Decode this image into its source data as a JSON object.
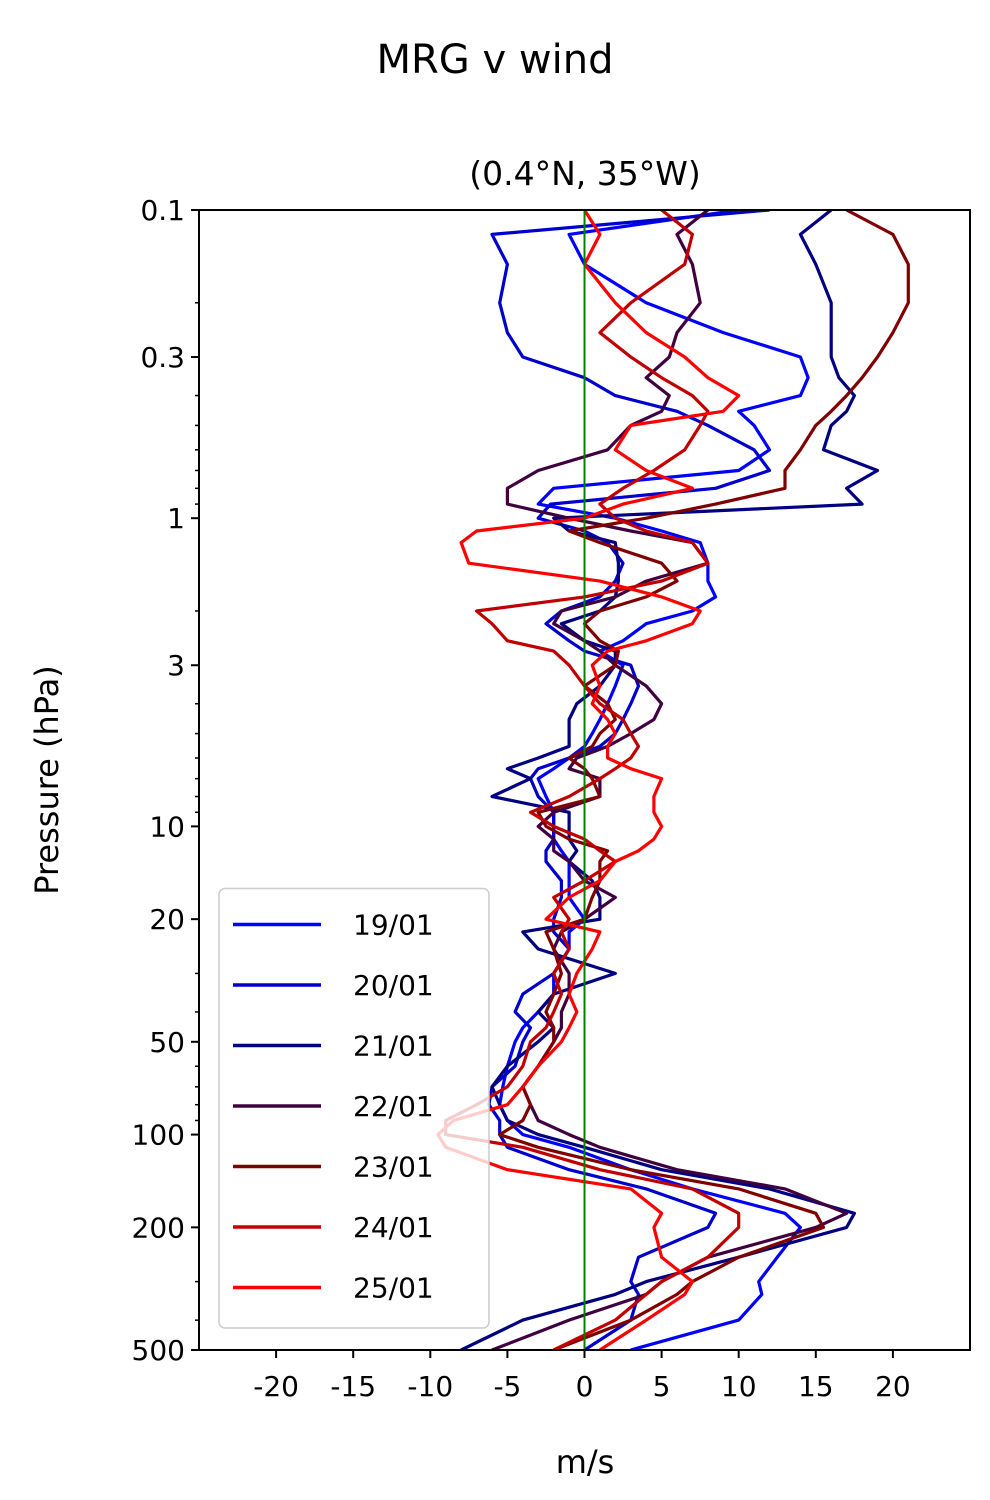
{
  "chart_data": {
    "type": "line",
    "suptitle": "MRG v wind",
    "title": "(0.4°N, 35°W)",
    "xlabel": "m/s",
    "ylabel": "Pressure (hPa)",
    "xlim": [
      -25,
      25
    ],
    "ylim": [
      500,
      0.1
    ],
    "yscale": "log",
    "x_ticks": [
      -20,
      -15,
      -10,
      -5,
      0,
      5,
      10,
      15,
      20
    ],
    "x_tick_labels": [
      "-20",
      "-15",
      "-10",
      "-5",
      "0",
      "5",
      "10",
      "15",
      "20"
    ],
    "y_ticks": [
      0.1,
      0.3,
      1,
      3,
      10,
      20,
      50,
      100,
      200,
      500
    ],
    "y_tick_labels": [
      "0.1",
      "0.3",
      "1",
      "3",
      "10",
      "20",
      "50",
      "100",
      "200",
      "500"
    ],
    "grid": false,
    "legend_position": "lower-left",
    "zero_line": {
      "x": 0,
      "color": "#008000"
    },
    "series": [
      {
        "name": "19/01",
        "color": "#0000ff",
        "pressure": [
          500,
          400,
          330,
          300,
          250,
          200,
          180,
          150,
          130,
          110,
          100,
          90,
          80,
          70,
          60,
          50,
          45,
          40,
          35,
          30,
          25,
          22,
          20,
          17,
          15,
          13,
          12,
          11,
          10,
          9,
          8,
          7,
          6.5,
          6,
          5.5,
          5,
          4.5,
          4,
          3.5,
          3,
          2.7,
          2.5,
          2.2,
          2,
          1.8,
          1.6,
          1.4,
          1.2,
          1.1,
          1,
          0.9,
          0.8,
          0.7,
          0.6,
          0.5,
          0.45,
          0.4,
          0.35,
          0.3,
          0.25,
          0.2,
          0.15,
          0.12,
          0.1
        ],
        "values": [
          3,
          10,
          11.5,
          11.3,
          12.5,
          14,
          13,
          7,
          3,
          -1,
          -4,
          -5,
          -5.5,
          -5.3,
          -5,
          -4.5,
          -4,
          -3,
          -2,
          -2,
          -1,
          -1,
          0,
          -1,
          -1,
          -1,
          -1.5,
          -2,
          -2,
          -2,
          -2.5,
          -3,
          -2,
          -1,
          0,
          0.5,
          1,
          1.5,
          2,
          2.5,
          1,
          2.5,
          4,
          7,
          8.5,
          8,
          8,
          7.5,
          5,
          2,
          -3,
          -2,
          10,
          12,
          11,
          10,
          14,
          14.5,
          14,
          9,
          4,
          0,
          -1,
          10
        ]
      },
      {
        "name": "20/01",
        "color": "#0000cd",
        "pressure": [
          500,
          400,
          330,
          300,
          250,
          200,
          180,
          150,
          130,
          110,
          100,
          90,
          80,
          70,
          60,
          50,
          45,
          40,
          35,
          30,
          25,
          22,
          20,
          17,
          15,
          13,
          12,
          11,
          10,
          9,
          8,
          7,
          6.5,
          6,
          5.5,
          5,
          4.5,
          4,
          3.5,
          3,
          2.7,
          2.5,
          2.2,
          2,
          1.8,
          1.6,
          1.4,
          1.2,
          1.1,
          1,
          0.9,
          0.8,
          0.7,
          0.6,
          0.5,
          0.45,
          0.4,
          0.35,
          0.3,
          0.25,
          0.2,
          0.15,
          0.12,
          0.1
        ],
        "values": [
          0,
          3,
          3.5,
          3,
          3.5,
          8,
          8.5,
          4,
          -1,
          -5,
          -5.5,
          -5.5,
          -6.2,
          -6,
          -4.5,
          -4,
          -3.5,
          -4.5,
          -4,
          -2,
          -1,
          -2,
          -2,
          -1.5,
          -1.5,
          -2.5,
          -2.5,
          -2,
          -2,
          -2,
          -3,
          -3.5,
          -3,
          -1,
          1,
          2,
          2.5,
          3,
          3.5,
          3,
          0,
          -1,
          -2.5,
          -1.5,
          1,
          2,
          2.5,
          1.5,
          0,
          -3,
          -2.2,
          8.5,
          12,
          11,
          8,
          6,
          2,
          0,
          -4,
          -5,
          -5.5,
          -5,
          -6,
          12
        ]
      },
      {
        "name": "21/01",
        "color": "#000080",
        "pressure": [
          500,
          400,
          330,
          300,
          250,
          200,
          180,
          150,
          130,
          110,
          100,
          90,
          80,
          70,
          60,
          50,
          45,
          40,
          35,
          30,
          25,
          22,
          20,
          17,
          15,
          13,
          12,
          11,
          10,
          9,
          8,
          7,
          6.5,
          6,
          5.5,
          5,
          4.5,
          4,
          3.5,
          3,
          2.7,
          2.5,
          2.2,
          2,
          1.8,
          1.6,
          1.4,
          1.2,
          1.1,
          1,
          0.9,
          0.8,
          0.7,
          0.6,
          0.5,
          0.45,
          0.4,
          0.35,
          0.3,
          0.25,
          0.2,
          0.15,
          0.12,
          0.1
        ],
        "values": [
          -8,
          -4,
          2,
          4,
          10,
          17,
          17.5,
          12,
          5,
          0,
          -3,
          -5,
          -5.5,
          -6,
          -5,
          -3,
          -2,
          -3,
          -2,
          2,
          -3,
          -4,
          1,
          1,
          0.5,
          -1,
          -0.5,
          -1,
          -1,
          -1,
          -6,
          -3.5,
          -5,
          -3,
          -1,
          -1,
          -1,
          -0.5,
          1,
          2,
          2,
          0,
          -1.5,
          1,
          2,
          2.2,
          2.2,
          2,
          -1,
          -2,
          18,
          17,
          19,
          15.5,
          16,
          17,
          17.5,
          16.5,
          16,
          16,
          16,
          15,
          14,
          16
        ]
      },
      {
        "name": "22/01",
        "color": "#400040",
        "pressure": [
          500,
          400,
          330,
          300,
          250,
          200,
          180,
          150,
          130,
          110,
          100,
          90,
          80,
          70,
          60,
          50,
          45,
          40,
          35,
          30,
          25,
          22,
          20,
          17,
          15,
          13,
          12,
          11,
          10,
          9,
          8,
          7,
          6.5,
          6,
          5.5,
          5,
          4.5,
          4,
          3.5,
          3,
          2.7,
          2.5,
          2.2,
          2,
          1.8,
          1.6,
          1.4,
          1.2,
          1.1,
          1,
          0.9,
          0.8,
          0.7,
          0.6,
          0.5,
          0.45,
          0.4,
          0.35,
          0.3,
          0.25,
          0.2,
          0.15,
          0.12,
          0.1
        ],
        "values": [
          -6,
          -1,
          4,
          5,
          8,
          15,
          17,
          13,
          6,
          1,
          -1,
          -3,
          -3.5,
          -4,
          -3,
          -2,
          -1.5,
          -1.5,
          -1,
          -1,
          -2,
          -1.5,
          0,
          2,
          0,
          -1,
          -2,
          -2,
          -3,
          -2,
          1,
          1,
          -1,
          -0.5,
          1.5,
          3,
          4.5,
          5,
          4,
          2,
          1,
          0,
          -2,
          -1.5,
          2,
          4,
          8,
          7,
          3,
          -1,
          -5,
          -5,
          -3,
          1.5,
          3,
          5,
          5.5,
          4,
          5.5,
          6,
          7.5,
          7,
          6,
          8
        ]
      },
      {
        "name": "23/01",
        "color": "#800000",
        "pressure": [
          500,
          400,
          330,
          300,
          250,
          200,
          180,
          150,
          130,
          110,
          100,
          90,
          80,
          70,
          60,
          50,
          45,
          40,
          35,
          30,
          25,
          22,
          20,
          17,
          15,
          13,
          12,
          11,
          10,
          9,
          8,
          7,
          6.5,
          6,
          5.5,
          5,
          4.5,
          4,
          3.5,
          3,
          2.7,
          2.5,
          2.2,
          2,
          1.8,
          1.6,
          1.4,
          1.2,
          1.1,
          1,
          0.9,
          0.8,
          0.7,
          0.6,
          0.5,
          0.45,
          0.4,
          0.35,
          0.3,
          0.25,
          0.2,
          0.15,
          0.12,
          0.1
        ],
        "values": [
          -2,
          3,
          6,
          7,
          10,
          15.5,
          15,
          10,
          3,
          -3,
          -5.5,
          -4,
          -3.5,
          -4,
          -3,
          -2,
          -2,
          -2.5,
          -2,
          -1.5,
          -2,
          -2.5,
          0,
          0.5,
          1,
          1,
          1.5,
          -1,
          -2.5,
          -3,
          1,
          0.5,
          0,
          -1,
          0.5,
          1,
          2,
          1.5,
          0,
          2,
          2.2,
          1,
          0,
          1,
          4,
          6,
          5,
          1,
          -1,
          4,
          8.5,
          13,
          13,
          14,
          15,
          16,
          17,
          18,
          19,
          20,
          21,
          21,
          20,
          17
        ]
      },
      {
        "name": "24/01",
        "color": "#c00000",
        "pressure": [
          500,
          400,
          330,
          300,
          250,
          200,
          180,
          150,
          130,
          110,
          100,
          90,
          80,
          70,
          60,
          50,
          45,
          40,
          35,
          30,
          25,
          22,
          20,
          17,
          15,
          13,
          12,
          11,
          10,
          9,
          8,
          7,
          6.5,
          6,
          5.5,
          5,
          4.5,
          4,
          3.5,
          3,
          2.7,
          2.5,
          2.2,
          2,
          1.8,
          1.6,
          1.4,
          1.2,
          1.1,
          1,
          0.9,
          0.8,
          0.7,
          0.6,
          0.5,
          0.45,
          0.4,
          0.35,
          0.3,
          0.25,
          0.2,
          0.15,
          0.12,
          0.1
        ],
        "values": [
          -2,
          2,
          4,
          5,
          8,
          10,
          10,
          7,
          1,
          -4,
          -9,
          -9,
          -7,
          -5,
          -4,
          -3.5,
          -2.5,
          -2,
          -1.5,
          -2,
          -1,
          -1.5,
          -1,
          -2,
          0,
          2,
          1,
          0,
          -2,
          -3.5,
          -1,
          1,
          2,
          3,
          3.5,
          3,
          2.5,
          1,
          0,
          -1,
          -2,
          -5,
          -6,
          -7,
          0,
          5,
          8,
          7,
          4,
          2,
          1,
          2.5,
          4.5,
          6.5,
          7.5,
          8,
          7,
          5,
          3,
          1,
          3,
          6.5,
          7,
          5
        ]
      },
      {
        "name": "25/01",
        "color": "#ff0000",
        "pressure": [
          500,
          400,
          330,
          300,
          250,
          200,
          180,
          150,
          130,
          110,
          100,
          90,
          80,
          70,
          60,
          50,
          45,
          40,
          35,
          30,
          25,
          22,
          20,
          17,
          15,
          13,
          12,
          11,
          10,
          9,
          8,
          7,
          6.5,
          6,
          5.5,
          5,
          4.5,
          4,
          3.5,
          3,
          2.7,
          2.5,
          2.2,
          2,
          1.8,
          1.6,
          1.4,
          1.2,
          1.1,
          1,
          0.9,
          0.8,
          0.7,
          0.6,
          0.5,
          0.45,
          0.4,
          0.35,
          0.3,
          0.25,
          0.2,
          0.15,
          0.12,
          0.1
        ],
        "values": [
          1,
          4,
          6.5,
          7,
          5,
          4.5,
          5,
          3,
          -5,
          -9,
          -9.5,
          -8.5,
          -5,
          -4,
          -3,
          -1.5,
          -1,
          -0.5,
          -1,
          -0.5,
          0.5,
          1,
          -2.5,
          -1,
          1,
          2,
          3.5,
          4.5,
          5,
          4.5,
          4.5,
          5,
          3,
          1.5,
          1.5,
          2,
          1.5,
          0.5,
          1,
          0.5,
          1.5,
          4,
          7,
          7.5,
          5,
          1,
          -7.5,
          -8,
          -7,
          0,
          2.5,
          7,
          4,
          2,
          3,
          9,
          10,
          8,
          6.5,
          4,
          2,
          0,
          1,
          0
        ]
      }
    ]
  }
}
